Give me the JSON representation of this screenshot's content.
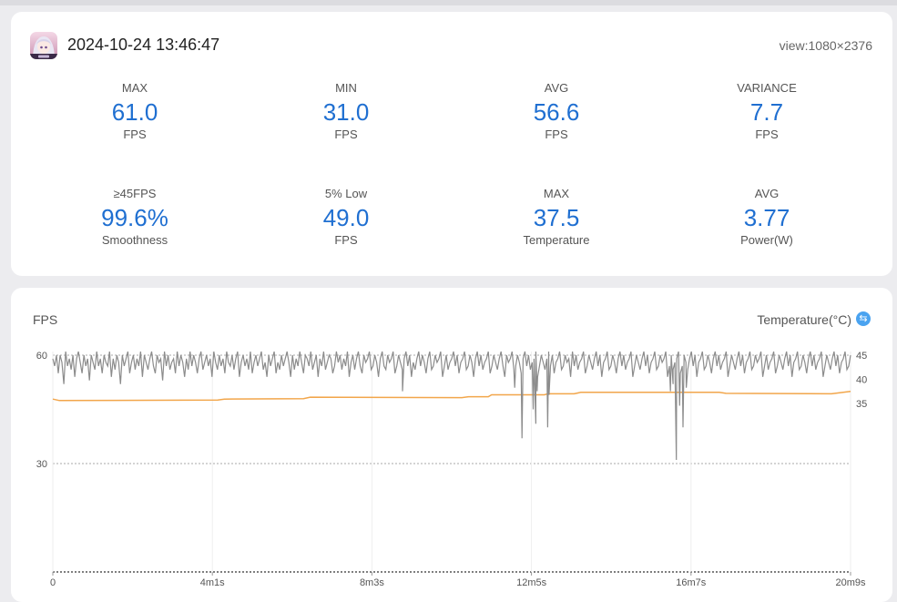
{
  "session": {
    "timestamp": "2024-10-24 13:46:47",
    "view": "view:1080×2376",
    "app_icon": "anime-character-app-icon"
  },
  "stats_row1": [
    {
      "label": "MAX",
      "value": "61.0",
      "unit": "FPS"
    },
    {
      "label": "MIN",
      "value": "31.0",
      "unit": "FPS"
    },
    {
      "label": "AVG",
      "value": "56.6",
      "unit": "FPS"
    },
    {
      "label": "VARIANCE",
      "value": "7.7",
      "unit": "FPS"
    }
  ],
  "stats_row2": [
    {
      "label": "≥45FPS",
      "value": "99.6%",
      "unit": "Smoothness"
    },
    {
      "label": "5% Low",
      "value": "49.0",
      "unit": "FPS"
    },
    {
      "label": "MAX",
      "value": "37.5",
      "unit": "Temperature"
    },
    {
      "label": "AVG",
      "value": "3.77",
      "unit": "Power(W)"
    }
  ],
  "chart": {
    "left_label": "FPS",
    "right_label": "Temperature(°C)",
    "swap_icon": "swap-arrows-icon",
    "colors": {
      "fps": "#8c8c8c",
      "temperature": "#f2a64b",
      "value": "#1f6fd1"
    }
  },
  "chart_data": {
    "type": "line",
    "x_ticks": [
      "0",
      "4m1s",
      "8m3s",
      "12m5s",
      "16m7s",
      "20m9s"
    ],
    "duration_seconds": 1209,
    "y_left_ticks": [
      30,
      60
    ],
    "y_left_range": [
      0,
      61
    ],
    "y_right_ticks": [
      35,
      40,
      45
    ],
    "series": [
      {
        "name": "FPS",
        "axis": "left",
        "stats": {
          "max": 61,
          "min": 31,
          "avg": 56.6
        },
        "values": [
          59,
          57,
          60,
          55,
          60,
          58,
          52,
          61,
          57,
          59,
          56,
          60,
          54,
          59,
          61,
          58,
          55,
          60,
          57,
          59,
          53,
          60,
          58,
          56,
          61,
          57,
          59,
          55,
          60,
          58,
          57,
          61,
          54,
          59,
          56,
          60,
          58,
          52,
          60,
          57,
          59,
          61,
          55,
          58,
          60,
          56,
          59,
          57,
          61,
          54,
          60,
          58,
          56,
          59,
          61,
          57,
          55,
          60,
          58,
          59,
          53,
          61,
          57,
          60,
          56,
          58,
          59,
          55,
          61,
          57,
          60,
          58,
          54,
          59,
          56,
          61,
          57,
          60,
          58,
          55,
          59,
          61,
          56,
          58,
          60,
          57,
          59,
          54,
          61,
          58,
          56,
          60,
          57,
          59,
          55,
          61,
          58,
          57,
          60,
          56,
          59,
          61,
          54,
          58,
          60,
          57,
          59,
          56,
          61,
          55,
          58,
          60,
          57,
          59,
          61,
          56,
          58,
          54,
          60,
          57,
          59,
          61,
          55,
          58,
          56,
          60,
          57,
          59,
          61,
          58,
          54,
          60,
          56,
          59,
          57,
          61,
          58,
          55,
          60,
          59,
          57,
          61,
          56,
          58,
          60,
          54,
          59,
          57,
          61,
          56,
          58,
          60,
          59,
          55,
          57,
          61,
          58,
          60,
          56,
          59,
          57,
          61,
          54,
          58,
          60,
          56,
          59,
          61,
          57,
          55,
          60,
          58,
          59,
          61,
          56,
          57,
          60,
          58,
          54,
          59,
          61,
          57,
          56,
          60,
          58,
          59,
          61,
          55,
          57,
          60,
          58,
          56,
          59,
          61,
          57,
          60,
          54,
          58,
          56,
          59,
          61,
          57,
          60,
          58,
          55,
          59,
          61,
          56,
          57,
          60,
          58,
          59,
          61,
          54,
          57,
          60,
          56,
          58,
          59,
          61,
          57,
          60,
          55,
          58,
          59,
          61,
          56,
          57,
          60,
          58,
          54,
          59,
          61,
          57,
          60,
          56,
          58,
          59,
          61,
          55,
          57,
          60,
          58,
          56,
          59,
          61,
          57,
          54,
          60,
          58,
          59,
          61,
          56,
          57,
          60,
          58,
          55,
          59,
          61,
          57,
          60,
          56,
          58,
          59,
          61,
          54,
          57,
          60,
          58,
          56,
          59,
          61,
          57,
          60,
          55,
          58,
          59,
          61,
          56,
          57,
          60,
          58,
          59,
          54,
          61,
          57,
          60,
          56,
          58,
          59,
          61,
          55,
          57,
          60,
          58,
          56,
          59,
          61,
          57,
          60,
          54,
          58,
          59,
          61,
          56,
          57,
          60,
          58,
          55,
          59,
          61,
          57,
          60,
          56,
          58,
          59,
          61,
          54,
          57,
          60,
          58,
          56,
          59,
          61,
          57,
          60,
          55,
          58,
          59,
          61,
          56,
          57,
          60,
          58,
          59,
          61,
          54,
          57,
          60,
          56,
          58,
          59,
          61,
          55,
          57,
          60,
          58,
          56,
          59,
          61,
          57,
          60,
          54,
          58,
          59,
          61,
          56,
          57,
          60,
          58,
          55,
          59,
          61,
          57,
          60,
          56,
          58,
          59,
          61,
          54,
          57,
          60,
          58,
          56,
          59,
          61,
          57,
          60,
          55,
          58,
          59,
          61,
          56,
          57,
          60,
          58,
          59,
          61,
          54,
          57,
          60,
          56,
          58,
          59,
          61,
          55,
          57,
          60,
          58,
          56,
          59,
          61,
          57,
          60,
          54,
          58,
          59,
          61,
          56,
          57,
          60,
          58,
          55,
          59,
          61,
          57,
          60,
          56,
          58,
          59,
          61,
          54,
          57,
          60,
          58,
          56,
          59,
          61,
          57,
          60,
          55,
          58,
          59,
          61,
          56,
          57,
          60
        ],
        "dips": [
          {
            "t": 530,
            "v": 50
          },
          {
            "t": 700,
            "v": 51
          },
          {
            "t": 711,
            "v": 37
          },
          {
            "t": 728,
            "v": 45
          },
          {
            "t": 732,
            "v": 41
          },
          {
            "t": 734,
            "v": 50
          },
          {
            "t": 750,
            "v": 40
          },
          {
            "t": 752,
            "v": 49
          },
          {
            "t": 936,
            "v": 50
          },
          {
            "t": 940,
            "v": 52
          },
          {
            "t": 945,
            "v": 31
          },
          {
            "t": 950,
            "v": 46
          },
          {
            "t": 955,
            "v": 40
          },
          {
            "t": 960,
            "v": 51
          }
        ]
      },
      {
        "name": "Temperature",
        "axis": "right",
        "points": [
          [
            0,
            35.9
          ],
          [
            10,
            35.6
          ],
          [
            250,
            35.7
          ],
          [
            260,
            35.9
          ],
          [
            380,
            36.0
          ],
          [
            390,
            36.3
          ],
          [
            620,
            36.2
          ],
          [
            630,
            36.4
          ],
          [
            660,
            36.4
          ],
          [
            665,
            36.8
          ],
          [
            745,
            36.8
          ],
          [
            750,
            37.0
          ],
          [
            790,
            37.0
          ],
          [
            800,
            37.3
          ],
          [
            1010,
            37.3
          ],
          [
            1020,
            37.1
          ],
          [
            1180,
            37.0
          ],
          [
            1209,
            37.5
          ]
        ]
      }
    ]
  }
}
